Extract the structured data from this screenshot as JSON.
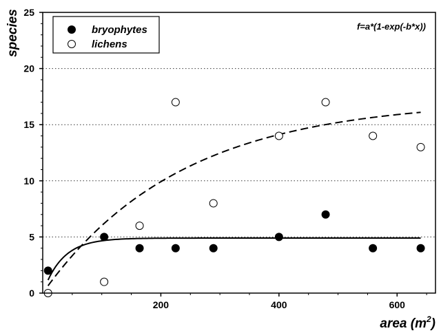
{
  "chart_data": {
    "type": "scatter",
    "xlabel": "area (m²)",
    "xlabel_main": "area (m",
    "xlabel_sup": "2",
    "xlabel_end": ")",
    "ylabel": "species",
    "xlim": [
      0,
      665
    ],
    "ylim": [
      0,
      25
    ],
    "xticks": [
      200,
      400,
      600
    ],
    "yticks": [
      0,
      5,
      10,
      15,
      20,
      25
    ],
    "grid": "horizontal dotted at 5, 10, 15, 20",
    "legend_position": "top-left",
    "annotation": "f=a*(1-exp(-b*x))",
    "series": [
      {
        "name": "bryophytes",
        "marker": "filled-circle",
        "points": [
          [
            9,
            2
          ],
          [
            104,
            5
          ],
          [
            164,
            4
          ],
          [
            225,
            4
          ],
          [
            289,
            4
          ],
          [
            400,
            5
          ],
          [
            479,
            7
          ],
          [
            559,
            4
          ],
          [
            640,
            4
          ]
        ]
      },
      {
        "name": "lichens",
        "marker": "open-circle",
        "points": [
          [
            9,
            0
          ],
          [
            104,
            1
          ],
          [
            164,
            6
          ],
          [
            225,
            17
          ],
          [
            289,
            8
          ],
          [
            400,
            14
          ],
          [
            479,
            17
          ],
          [
            559,
            14
          ],
          [
            640,
            13
          ]
        ]
      }
    ],
    "fits": [
      {
        "series": "bryophytes",
        "style": "solid",
        "a": 4.9,
        "b": 0.03,
        "x_range": [
          9,
          640
        ]
      },
      {
        "series": "lichens",
        "style": "dashed",
        "a": 17.2,
        "b": 0.0043,
        "x_range": [
          9,
          640
        ]
      }
    ]
  },
  "colors": {
    "marker": "#000000",
    "background": "#ffffff",
    "grid": "#333333"
  }
}
